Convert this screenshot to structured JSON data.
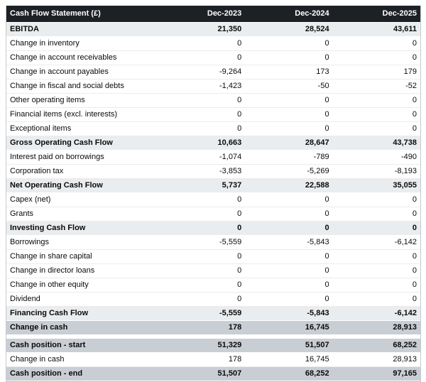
{
  "chart_data": {
    "type": "table",
    "title": "Cash Flow Statement (£)",
    "columns": [
      "Dec-2023",
      "Dec-2024",
      "Dec-2025"
    ],
    "rows": [
      {
        "label": "EBITDA",
        "values": [
          21350,
          28524,
          43611
        ],
        "style": "subtotal"
      },
      {
        "label": "Change in inventory",
        "values": [
          0,
          0,
          0
        ],
        "style": "normal"
      },
      {
        "label": "Change in account receivables",
        "values": [
          0,
          0,
          0
        ],
        "style": "normal"
      },
      {
        "label": "Change in account payables",
        "values": [
          -9264,
          173,
          179
        ],
        "style": "normal"
      },
      {
        "label": "Change in fiscal and social debts",
        "values": [
          -1423,
          -50,
          -52
        ],
        "style": "normal"
      },
      {
        "label": "Other operating items",
        "values": [
          0,
          0,
          0
        ],
        "style": "normal"
      },
      {
        "label": "Financial items (excl. interests)",
        "values": [
          0,
          0,
          0
        ],
        "style": "normal"
      },
      {
        "label": "Exceptional items",
        "values": [
          0,
          0,
          0
        ],
        "style": "normal"
      },
      {
        "label": "Gross Operating Cash Flow",
        "values": [
          10663,
          28647,
          43738
        ],
        "style": "subtotal"
      },
      {
        "label": "Interest paid on borrowings",
        "values": [
          -1074,
          -789,
          -490
        ],
        "style": "normal"
      },
      {
        "label": "Corporation tax",
        "values": [
          -3853,
          -5269,
          -8193
        ],
        "style": "normal"
      },
      {
        "label": "Net Operating Cash Flow",
        "values": [
          5737,
          22588,
          35055
        ],
        "style": "subtotal"
      },
      {
        "label": "Capex (net)",
        "values": [
          0,
          0,
          0
        ],
        "style": "normal"
      },
      {
        "label": "Grants",
        "values": [
          0,
          0,
          0
        ],
        "style": "normal"
      },
      {
        "label": "Investing Cash Flow",
        "values": [
          0,
          0,
          0
        ],
        "style": "subtotal"
      },
      {
        "label": "Borrowings",
        "values": [
          -5559,
          -5843,
          -6142
        ],
        "style": "normal"
      },
      {
        "label": "Change in share capital",
        "values": [
          0,
          0,
          0
        ],
        "style": "normal"
      },
      {
        "label": "Change in director loans",
        "values": [
          0,
          0,
          0
        ],
        "style": "normal"
      },
      {
        "label": "Change in other equity",
        "values": [
          0,
          0,
          0
        ],
        "style": "normal"
      },
      {
        "label": "Dividend",
        "values": [
          0,
          0,
          0
        ],
        "style": "normal"
      },
      {
        "label": "Financing Cash Flow",
        "values": [
          -5559,
          -5843,
          -6142
        ],
        "style": "subtotal"
      },
      {
        "label": "Change in cash",
        "values": [
          178,
          16745,
          28913
        ],
        "style": "highlight"
      },
      {
        "label": "",
        "values": [],
        "style": "spacer"
      },
      {
        "label": "Cash position - start",
        "values": [
          51329,
          51507,
          68252
        ],
        "style": "highlight"
      },
      {
        "label": "Change in cash",
        "values": [
          178,
          16745,
          28913
        ],
        "style": "normal"
      },
      {
        "label": "Cash position - end",
        "values": [
          51507,
          68252,
          97165
        ],
        "style": "highlight"
      }
    ]
  },
  "colors": {
    "header_bg": "#1d2126",
    "header_text": "#ffffff",
    "subtotal_bg": "#eaedef",
    "highlight_bg": "#c9ced4",
    "text_color": "#0a0a0a",
    "side_border": "#c6cacf",
    "bottom_border": "#b6bbc1"
  }
}
